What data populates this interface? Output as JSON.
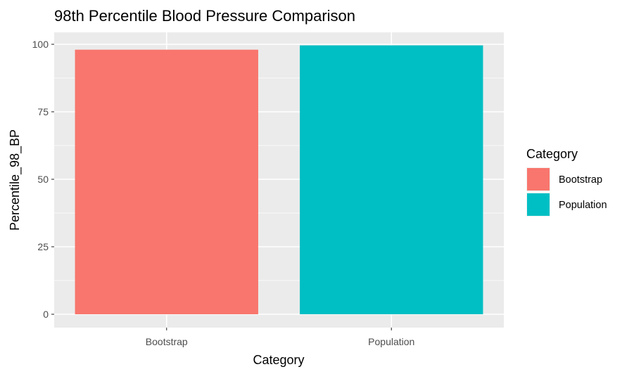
{
  "chart_data": {
    "type": "bar",
    "title": "98th Percentile Blood Pressure Comparison",
    "xlabel": "Category",
    "ylabel": "Percentile_98_BP",
    "categories": [
      "Bootstrap",
      "Population"
    ],
    "values": [
      98,
      99.6
    ],
    "colors": [
      "#F8766D",
      "#00BFC4"
    ],
    "ylim": [
      0,
      100
    ],
    "yticks": [
      0,
      25,
      50,
      75,
      100
    ],
    "ytick_labels": [
      "0",
      "25",
      "50",
      "75",
      "100"
    ],
    "grid": true,
    "panel_background": "#EBEBEB",
    "grid_color": "#FFFFFF",
    "legend": {
      "title": "Category",
      "position": "right",
      "entries": [
        "Bootstrap",
        "Population"
      ]
    }
  }
}
